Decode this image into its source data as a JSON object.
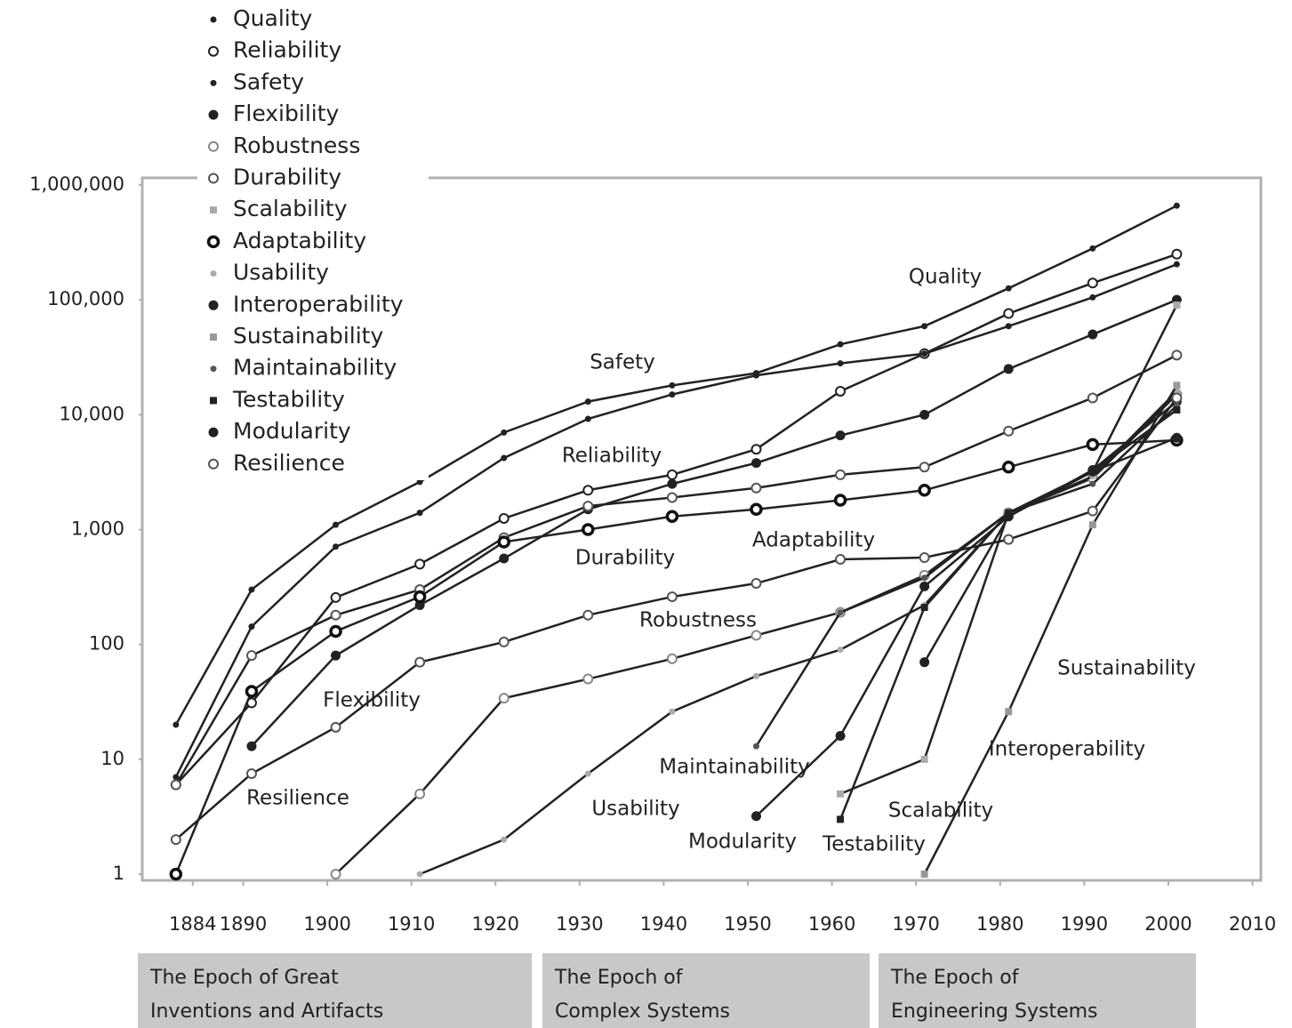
{
  "chart_data": {
    "type": "line",
    "log_y": true,
    "x": [
      1882,
      1891,
      1901,
      1911,
      1921,
      1931,
      1941,
      1951,
      1961,
      1971,
      1981,
      1991,
      2001
    ],
    "xlim": [
      1878,
      2011
    ],
    "xticks": [
      1884,
      1890,
      1900,
      1910,
      1920,
      1930,
      1940,
      1950,
      1960,
      1970,
      1980,
      1990,
      2000,
      2010
    ],
    "ylim": [
      1,
      1000000
    ],
    "yticks": [
      1,
      10,
      100,
      {
        "value": 1000,
        "label": "1,000"
      },
      {
        "value": 10000,
        "label": "10,000"
      },
      {
        "value": 100000,
        "label": "100,000"
      },
      {
        "value": 1000000,
        "label": "1,000,000"
      }
    ],
    "series": [
      {
        "name": "Quality",
        "color": "#222222",
        "marker": "dot",
        "values": [
          20,
          300,
          1100,
          2600,
          7000,
          13000,
          18000,
          23000,
          41000,
          59000,
          126000,
          280000,
          660000
        ]
      },
      {
        "name": "Reliability",
        "color": "#222222",
        "marker": "ring",
        "values": [
          6,
          31,
          256,
          500,
          1250,
          2200,
          3000,
          5000,
          16000,
          34000,
          76000,
          140000,
          250000
        ]
      },
      {
        "name": "Safety",
        "color": "#222222",
        "marker": "dot",
        "values": [
          7,
          143,
          710,
          1400,
          4200,
          9200,
          15000,
          22000,
          28000,
          34000,
          59000,
          105000,
          204000
        ]
      },
      {
        "name": "Flexibility",
        "color": "#222222",
        "marker": "disc",
        "values": [
          null,
          13,
          80,
          220,
          560,
          1500,
          2500,
          3800,
          6600,
          10000,
          25000,
          50000,
          100000
        ]
      },
      {
        "name": "Robustness",
        "color": "#888888",
        "marker": "ring",
        "values": [
          null,
          null,
          1,
          5,
          34,
          50,
          75,
          120,
          190,
          400,
          1400,
          2800,
          15000
        ]
      },
      {
        "name": "Durability",
        "color": "#555555",
        "marker": "ring",
        "values": [
          6,
          80,
          180,
          300,
          850,
          1600,
          1900,
          2300,
          3000,
          3500,
          7200,
          14000,
          33000
        ]
      },
      {
        "name": "Scalability",
        "color": "#aaaaaa",
        "marker": "square",
        "values": [
          null,
          null,
          null,
          null,
          null,
          null,
          null,
          null,
          5,
          10,
          1400,
          3200,
          90000
        ]
      },
      {
        "name": "Adaptability",
        "color": "#111111",
        "marker": "ring-bold",
        "values": [
          1,
          39,
          130,
          260,
          780,
          1000,
          1300,
          1500,
          1800,
          2200,
          3500,
          5500,
          6000
        ]
      },
      {
        "name": "Usability",
        "color": "#aaaaaa",
        "marker": "dot",
        "values": [
          null,
          null,
          null,
          1,
          2,
          7.5,
          26,
          53,
          90,
          220,
          1400,
          2900,
          16000
        ]
      },
      {
        "name": "Interoperability",
        "color": "#222222",
        "marker": "disc",
        "values": [
          null,
          null,
          null,
          null,
          null,
          null,
          null,
          null,
          null,
          70,
          1300,
          3300,
          13000
        ]
      },
      {
        "name": "Sustainability",
        "color": "#999999",
        "marker": "square",
        "values": [
          null,
          null,
          null,
          null,
          null,
          null,
          null,
          null,
          null,
          1,
          26,
          1100,
          18000
        ]
      },
      {
        "name": "Maintainability",
        "color": "#555555",
        "marker": "dot",
        "values": [
          null,
          null,
          null,
          null,
          null,
          null,
          null,
          13,
          190,
          380,
          1400,
          2500,
          12000
        ]
      },
      {
        "name": "Testability",
        "color": "#222222",
        "marker": "square",
        "values": [
          null,
          null,
          null,
          null,
          null,
          null,
          null,
          null,
          3,
          210,
          1400,
          3200,
          11000
        ]
      },
      {
        "name": "Modularity",
        "color": "#222222",
        "marker": "disc",
        "values": [
          null,
          null,
          null,
          null,
          null,
          null,
          null,
          3.2,
          16,
          320,
          1300,
          3200,
          6300
        ]
      },
      {
        "name": "Resilience",
        "color": "#555555",
        "marker": "ring",
        "values": [
          2,
          7.5,
          19,
          70,
          105,
          180,
          260,
          340,
          550,
          570,
          820,
          1450,
          14000
        ]
      }
    ],
    "epochs": [
      {
        "lines": [
          "The Epoch of Great",
          "Inventions and Artifacts"
        ]
      },
      {
        "lines": [
          "The Epoch of",
          "Complex Systems"
        ]
      },
      {
        "lines": [
          "The Epoch of",
          "Engineering Systems"
        ]
      }
    ]
  }
}
